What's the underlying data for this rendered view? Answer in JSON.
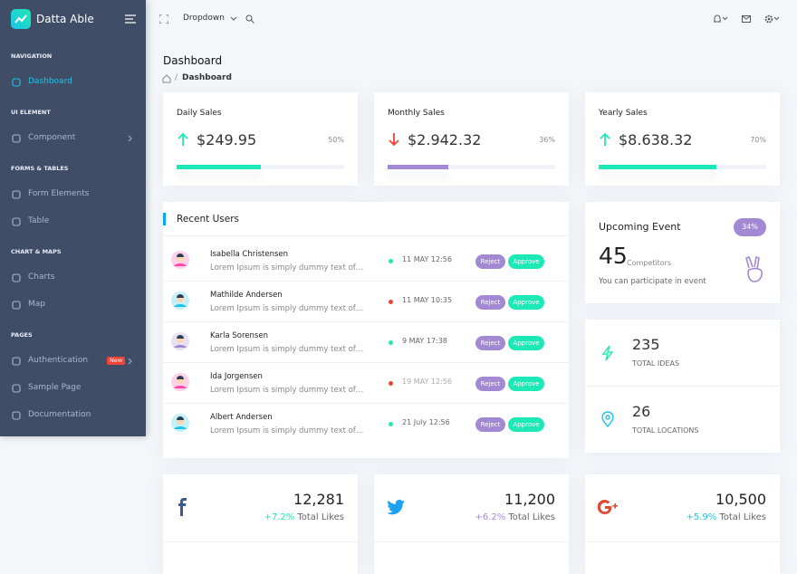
{
  "sidebar": {
    "brand": "Datta Able",
    "sections": [
      {
        "title": "NAVIGATION",
        "items": [
          {
            "label": "Dashboard",
            "active": true
          }
        ]
      },
      {
        "title": "UI ELEMENT",
        "items": [
          {
            "label": "Component",
            "submenu": true
          }
        ]
      },
      {
        "title": "FORMS & TABLES",
        "items": [
          {
            "label": "Form Elements"
          },
          {
            "label": "Table"
          }
        ]
      },
      {
        "title": "CHART & MAPS",
        "items": [
          {
            "label": "Charts"
          },
          {
            "label": "Map"
          }
        ]
      },
      {
        "title": "PAGES",
        "items": [
          {
            "label": "Authentication",
            "badge": "New",
            "submenu": true
          },
          {
            "label": "Sample Page"
          },
          {
            "label": "Documentation"
          }
        ]
      }
    ]
  },
  "topbar": {
    "dropdown": "Dropdown"
  },
  "page_header": {
    "title": "Dashboard",
    "breadcrumb": "Dashboard"
  },
  "sales": [
    {
      "title": "Daily Sales",
      "amount": "$249.95",
      "percent": "50%",
      "trend": "up",
      "bar_color": "#1de9b6"
    },
    {
      "title": "Monthly Sales",
      "amount": "$2.942.32",
      "percent": "36%",
      "trend": "down",
      "bar_color": "#a389d4"
    },
    {
      "title": "Yearly Sales",
      "amount": "$8.638.32",
      "percent": "70%",
      "trend": "up",
      "bar_color": "#1de9b6"
    }
  ],
  "recent_users": {
    "title": "Recent Users",
    "rows": [
      {
        "name": "Isabella Christensen",
        "text": "Lorem Ipsum is simply dummy text of…",
        "date": "11 MAY 12:56",
        "status": "green",
        "actions": [
          "Reject",
          "Approve"
        ]
      },
      {
        "name": "Mathilde Andersen",
        "text": "Lorem Ipsum is simply dummy text of…",
        "date": "11 MAY 10:35",
        "status": "red",
        "actions": [
          "Reject",
          "Approve"
        ]
      },
      {
        "name": "Karla Sorensen",
        "text": "Lorem Ipsum is simply dummy text of…",
        "date": "9 MAY 17:38",
        "status": "green",
        "actions": [
          "Reject",
          "Approve"
        ]
      },
      {
        "name": "Ida Jorgensen",
        "text": "Lorem Ipsum is simply dummy text of…",
        "date": "19 MAY 12:56",
        "status": "red",
        "actions": [
          "Reject",
          "Approve"
        ]
      },
      {
        "name": "Albert Andersen",
        "text": "Lorem Ipsum is simply dummy text of…",
        "date": "21 July 12:56",
        "status": "green",
        "actions": [
          "Reject",
          "Approve"
        ]
      }
    ]
  },
  "upcoming_event": {
    "title": "Upcoming Event",
    "badge": "34%",
    "count": "45",
    "count_label": "Competitors",
    "note": "You can participate in event"
  },
  "stats": [
    {
      "value": "235",
      "label": "TOTAL IDEAS"
    },
    {
      "value": "26",
      "label": "TOTAL LOCATIONS"
    }
  ],
  "social": [
    {
      "network": "facebook",
      "count": "12,281",
      "change": "+7.2%",
      "change_color": "#1de9b6",
      "label": "Total Likes"
    },
    {
      "network": "twitter",
      "count": "11,200",
      "change": "+6.2%",
      "change_color": "#a389d4",
      "label": "Total Likes"
    },
    {
      "network": "google",
      "count": "10,500",
      "change": "+5.9%",
      "change_color": "#1dc4e9",
      "label": "Total Likes"
    }
  ]
}
